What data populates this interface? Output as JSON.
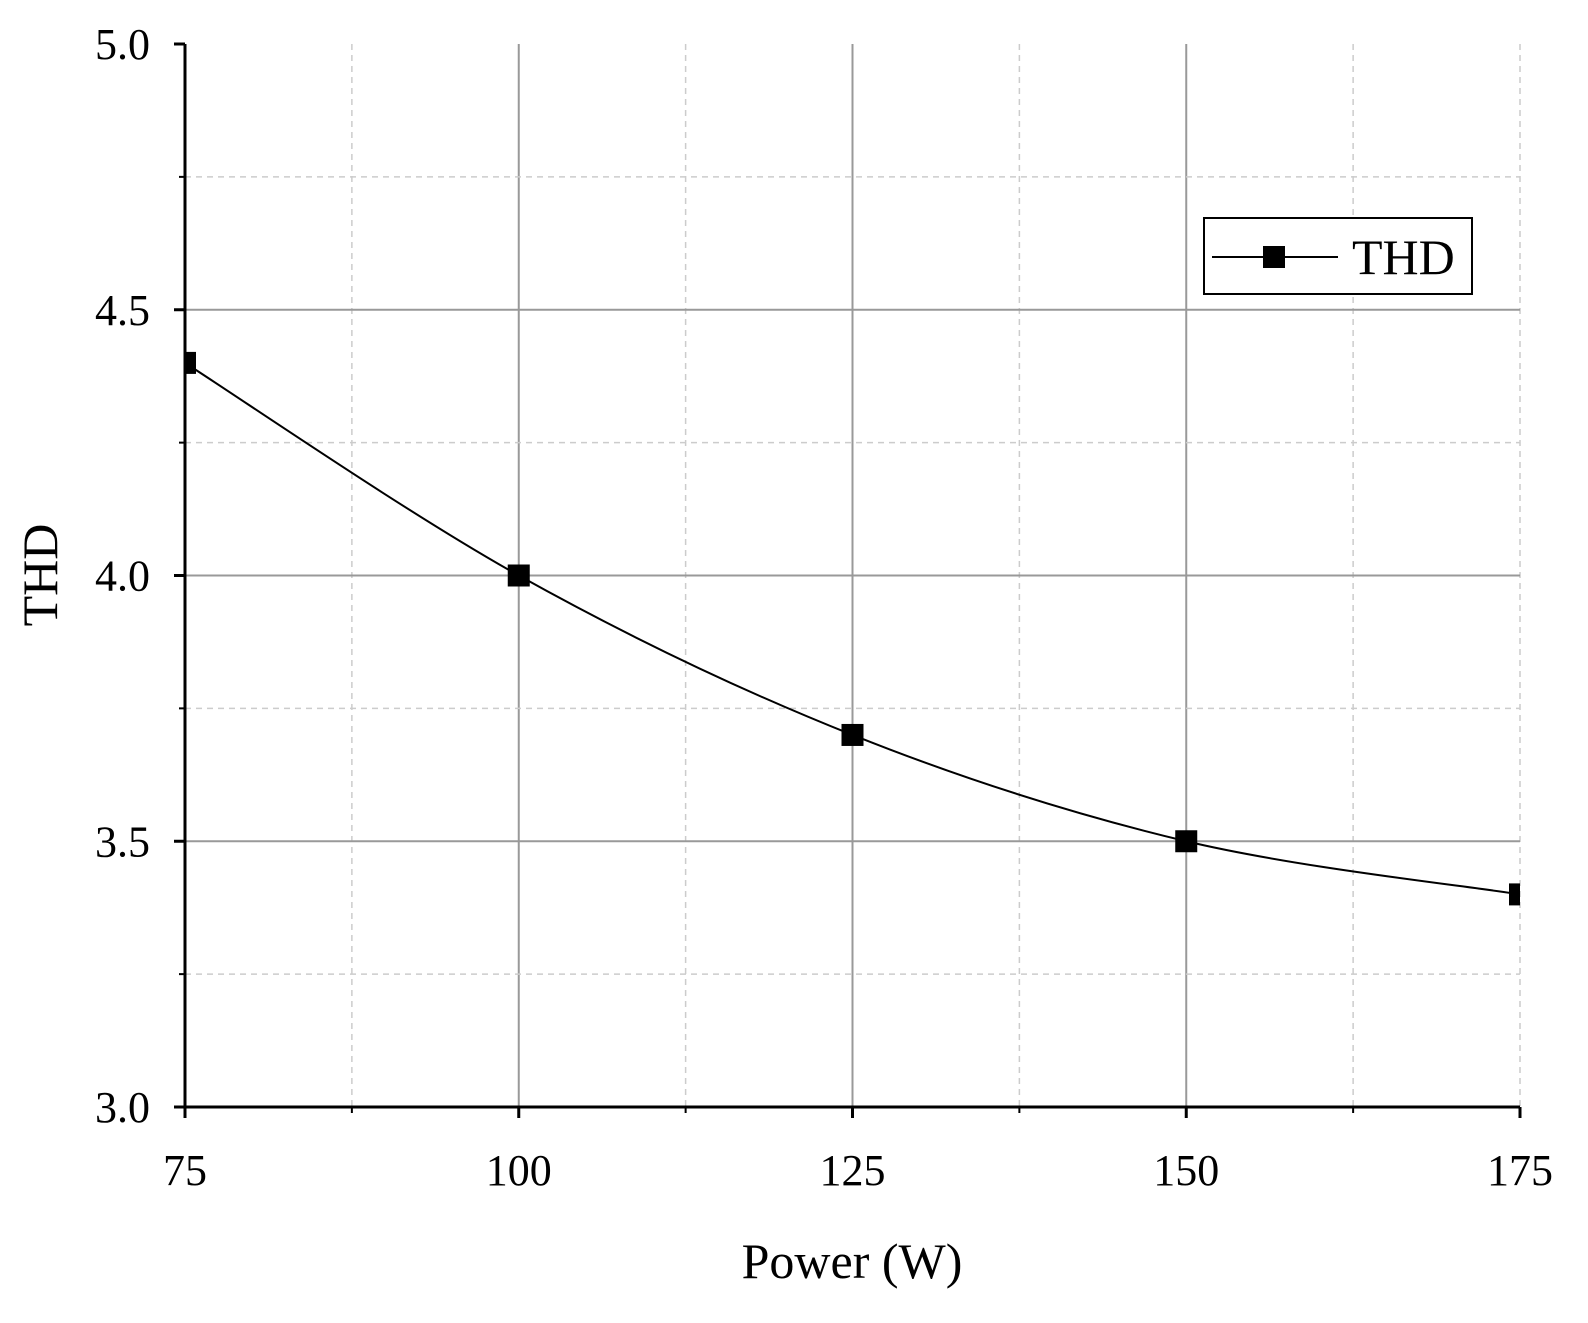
{
  "chart_data": {
    "type": "line",
    "title": "",
    "xlabel": "Power (W)",
    "ylabel": "THD",
    "xlim": [
      75,
      175
    ],
    "ylim": [
      3.0,
      5.0
    ],
    "x_ticks": [
      75,
      100,
      125,
      150,
      175
    ],
    "x_tick_labels": [
      "75",
      "100",
      "125",
      "150",
      "175"
    ],
    "y_ticks": [
      3.0,
      3.5,
      4.0,
      4.5,
      5.0
    ],
    "y_tick_labels": [
      "3.0",
      "3.5",
      "4.0",
      "4.5",
      "5.0"
    ],
    "grid": true,
    "legend_position": "top-right",
    "series": [
      {
        "name": "THD",
        "x": [
          75,
          100,
          125,
          150,
          175
        ],
        "values": [
          4.4,
          4.0,
          3.7,
          3.5,
          3.4
        ],
        "marker": "square",
        "color": "#000000",
        "smooth": true
      }
    ]
  }
}
